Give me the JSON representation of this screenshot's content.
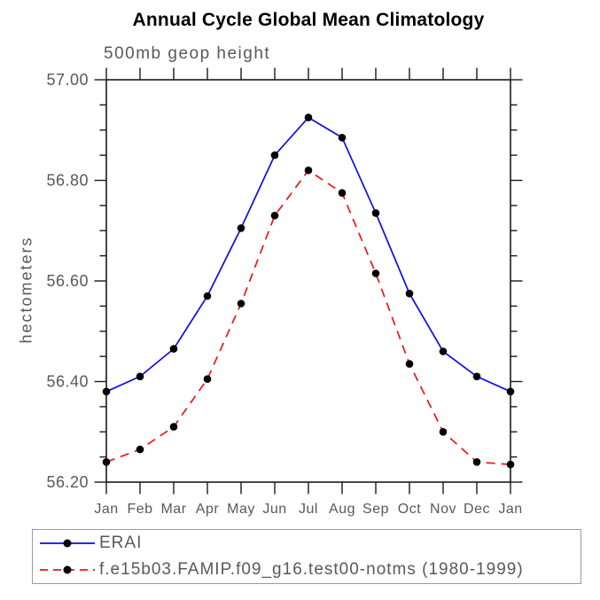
{
  "colors": {
    "background": "#ffffff",
    "axis": "#1a1a1a",
    "text_gray": "#595959",
    "legend_border": "#9c9c9c",
    "erai_blue": "#0c0ce8",
    "model_red": "#f01414",
    "marker_black": "#000000"
  },
  "chart_data": {
    "type": "line",
    "title": "Annual Cycle Global Mean Climatology",
    "subtitle": "500mb geop height",
    "ylabel": "hectometers",
    "categories": [
      "Jan",
      "Feb",
      "Mar",
      "Apr",
      "May",
      "Jun",
      "Jul",
      "Aug",
      "Sep",
      "Oct",
      "Nov",
      "Dec",
      "Jan"
    ],
    "ylim": [
      56.2,
      57.0
    ],
    "yticks": {
      "major_values": [
        56.2,
        56.4,
        56.6,
        56.8,
        57.0
      ],
      "major_labels": [
        "56.20",
        "56.40",
        "56.60",
        "56.80",
        "57.00"
      ],
      "minor_step": 0.05
    },
    "grid": false,
    "legend_position": "bottom",
    "series": [
      {
        "name": "ERAI",
        "color": "#0c0ce8",
        "line_style": "solid",
        "marker": "filled-circle",
        "marker_color": "#000000",
        "values": [
          56.38,
          56.41,
          56.465,
          56.57,
          56.705,
          56.85,
          56.925,
          56.885,
          56.735,
          56.575,
          56.46,
          56.41,
          56.38
        ]
      },
      {
        "name": "f.e15b03.FAMIP.f09_g16.test00-notms (1980-1999)",
        "color": "#f01414",
        "line_style": "dashed",
        "marker": "filled-circle",
        "marker_color": "#000000",
        "values": [
          56.24,
          56.265,
          56.31,
          56.405,
          56.555,
          56.73,
          56.82,
          56.775,
          56.615,
          56.435,
          56.3,
          56.24,
          56.235
        ]
      }
    ]
  }
}
